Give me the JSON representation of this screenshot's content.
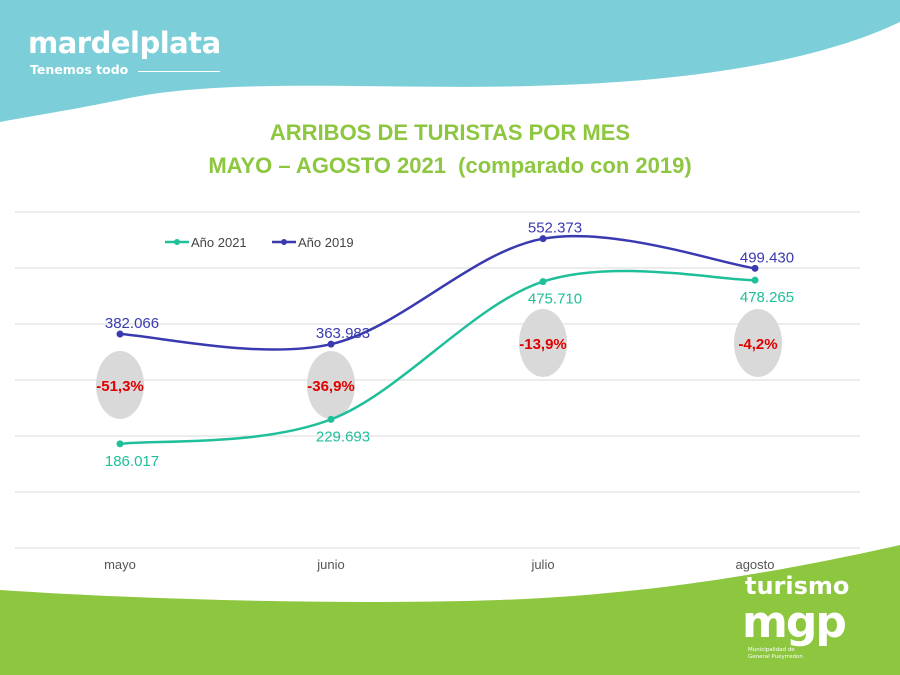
{
  "branding": {
    "logo": "mardelplata",
    "tagline": "Tenemos todo",
    "footer_logo_top": "turismo",
    "footer_logo_main": "mgp",
    "footer_logo_sub": "Municipalidad de General Pueyrredon"
  },
  "colors": {
    "top_wave": "#7ccfd9",
    "bottom_wave": "#8dc63f",
    "title": "#8dc63f",
    "series_2021": "#1fbf9a",
    "series_2019": "#3a3ab0",
    "pct_text": "#e00000",
    "pct_bubble": "#d9d9d9"
  },
  "chart_data": {
    "type": "line",
    "title": [
      "ARRIBOS DE TURISTAS POR MES",
      "MAYO – AGOSTO 2021  (comparado con 2019)"
    ],
    "categories": [
      "mayo",
      "junio",
      "julio",
      "agosto"
    ],
    "series": [
      {
        "name": "Año 2021",
        "values": [
          186017,
          229693,
          475710,
          478265
        ],
        "labels": [
          "186.017",
          "229.693",
          "475.710",
          "478.265"
        ]
      },
      {
        "name": "Año 2019",
        "values": [
          382066,
          363983,
          552373,
          499430
        ],
        "labels": [
          "382.066",
          "363.983",
          "552.373",
          "499.430"
        ]
      }
    ],
    "annotations": [
      "-51,3%",
      "-36,9%",
      "-13,9%",
      "-4,2%"
    ],
    "ylim": [
      0,
      600000
    ],
    "grid": true,
    "legend": "top-left",
    "smooth": true
  }
}
